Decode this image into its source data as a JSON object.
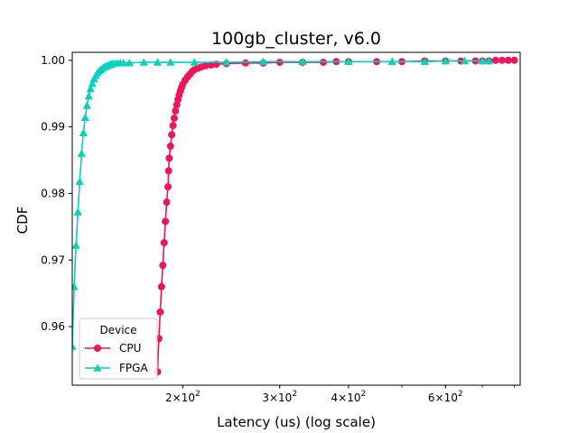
{
  "chart_data": {
    "type": "line",
    "title": "100gb_cluster, v6.0",
    "xlabel": "Latency (us) (log scale)",
    "ylabel": "CDF",
    "x_scale": "log",
    "xlim": [
      126,
      820
    ],
    "ylim": [
      0.9512,
      1.0012
    ],
    "x_ticks": [
      {
        "value": 200,
        "base": "2",
        "exp": "2"
      },
      {
        "value": 300,
        "base": "3",
        "exp": "2"
      },
      {
        "value": 400,
        "base": "4",
        "exp": "2"
      },
      {
        "value": 600,
        "base": "6",
        "exp": "2"
      }
    ],
    "y_ticks": [
      {
        "value": 0.96,
        "label": "0.96"
      },
      {
        "value": 0.97,
        "label": "0.97"
      },
      {
        "value": 0.98,
        "label": "0.98"
      },
      {
        "value": 0.99,
        "label": "0.99"
      },
      {
        "value": 1.0,
        "label": "1.00"
      }
    ],
    "grid": false,
    "legend": {
      "title": "Device",
      "placement": "lower-left"
    },
    "series": [
      {
        "name": "CPU",
        "color": "#f0145a",
        "marker": "circle",
        "x": [
          180,
          181,
          182,
          183,
          184,
          185,
          186,
          187,
          188,
          188.5,
          189,
          190,
          191,
          192,
          193,
          194,
          195,
          196,
          197,
          198,
          199,
          200,
          202,
          204,
          206,
          208,
          210,
          213,
          216,
          220,
          225,
          230,
          240,
          260,
          280,
          300,
          330,
          360,
          380,
          400,
          450,
          500,
          550,
          600,
          640,
          680,
          700,
          720,
          740,
          760,
          780,
          800
        ],
        "y": [
          0.9532,
          0.9582,
          0.9622,
          0.966,
          0.9692,
          0.9726,
          0.9758,
          0.9787,
          0.981,
          0.9834,
          0.9853,
          0.9871,
          0.9888,
          0.9902,
          0.9913,
          0.9924,
          0.9933,
          0.9941,
          0.9948,
          0.9954,
          0.9959,
          0.9964,
          0.997,
          0.9975,
          0.9979,
          0.9983,
          0.9986,
          0.9988,
          0.999,
          0.9992,
          0.9993,
          0.9994,
          0.9995,
          0.9996,
          0.9996,
          0.9997,
          0.9997,
          0.9997,
          0.9998,
          0.9998,
          0.9998,
          0.9998,
          0.9999,
          0.9999,
          0.9999,
          0.9999,
          0.9999,
          0.9999,
          1.0,
          1.0,
          1.0,
          1.0
        ]
      },
      {
        "name": "FPGA",
        "color": "#00d2be",
        "marker": "triangle",
        "x": [
          126,
          127,
          128,
          129,
          130,
          131,
          132,
          133,
          134,
          135,
          136,
          137,
          138,
          139,
          140,
          141,
          142,
          143,
          144,
          145,
          146,
          147,
          148,
          149,
          150,
          152,
          154,
          156,
          160,
          170,
          180,
          190,
          210,
          240,
          280,
          330,
          400,
          480,
          550,
          600,
          650,
          700,
          720
        ],
        "y": [
          0.957,
          0.966,
          0.9722,
          0.9772,
          0.9818,
          0.986,
          0.9891,
          0.9914,
          0.9932,
          0.9946,
          0.9957,
          0.9965,
          0.9972,
          0.9977,
          0.9981,
          0.9984,
          0.9986,
          0.9988,
          0.999,
          0.9991,
          0.9992,
          0.9993,
          0.9994,
          0.9995,
          0.9995,
          0.9996,
          0.9996,
          0.9996,
          0.9996,
          0.9997,
          0.9997,
          0.9997,
          0.9997,
          0.9997,
          0.9998,
          0.9998,
          0.9998,
          0.9998,
          0.9998,
          0.9999,
          0.9999,
          0.9999,
          0.9999
        ]
      }
    ]
  }
}
